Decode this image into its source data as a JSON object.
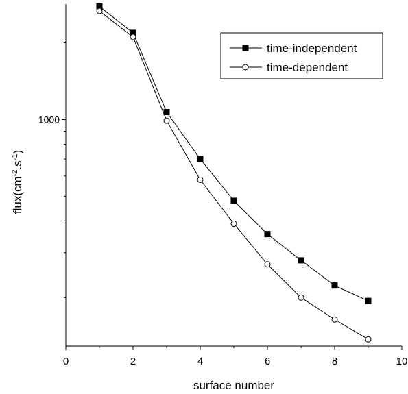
{
  "chart_data": {
    "type": "line",
    "xlabel": "surface number",
    "ylabel": {
      "parts": [
        {
          "t": "flux(cm",
          "sup": false
        },
        {
          "t": "-2",
          "sup": true
        },
        {
          "t": ".s",
          "sup": false
        },
        {
          "t": "-1",
          "sup": true
        },
        {
          "t": ")",
          "sup": false
        }
      ]
    },
    "x_scale": "linear",
    "y_scale": "log",
    "xlim": [
      0,
      10
    ],
    "ylim": [
      129,
      2840
    ],
    "x_ticks": [
      0,
      2,
      4,
      6,
      8,
      10
    ],
    "x_tick_labels": [
      "0",
      "2",
      "4",
      "6",
      "8",
      "10"
    ],
    "y_ticks": [
      1000
    ],
    "y_tick_labels": [
      "1000"
    ],
    "grid": false,
    "legend_position": "top-right",
    "series": [
      {
        "name": "time-independent",
        "marker": "filled-square",
        "color": "#000000",
        "x": [
          1,
          2,
          3,
          4,
          5,
          6,
          7,
          8,
          9
        ],
        "y": [
          2780,
          2190,
          1070,
          700,
          480,
          355,
          280,
          223,
          194
        ]
      },
      {
        "name": "time-dependent",
        "marker": "open-circle",
        "color": "#000000",
        "x": [
          1,
          2,
          3,
          4,
          5,
          6,
          7,
          8,
          9
        ],
        "y": [
          2670,
          2110,
          990,
          580,
          390,
          270,
          200,
          164,
          137
        ]
      }
    ]
  }
}
